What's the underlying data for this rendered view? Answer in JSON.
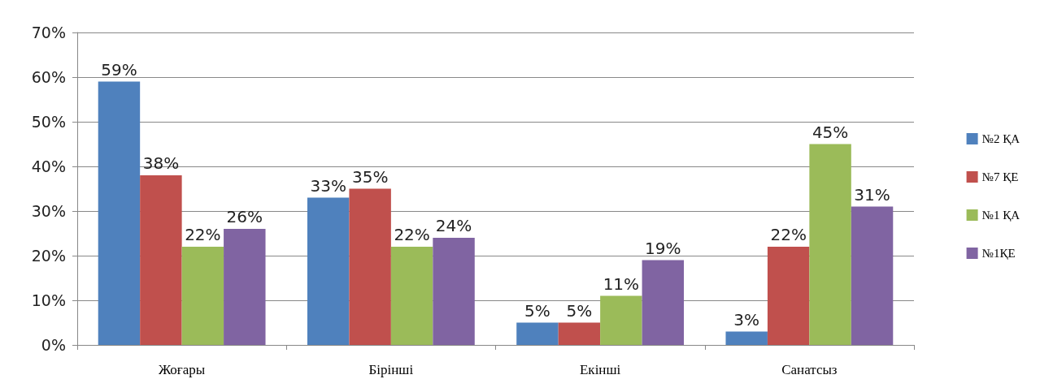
{
  "chart_data": {
    "type": "bar",
    "categories": [
      "Жоғары",
      "Бірінші",
      "Екінші",
      "Санатсыз"
    ],
    "series": [
      {
        "name": "№2 ҚА",
        "color": "#4f81bd",
        "values": [
          59,
          33,
          5,
          3
        ],
        "value_labels": [
          "59%",
          "33%",
          "5%",
          "3%"
        ]
      },
      {
        "name": "№7 ҚЕ",
        "color": "#c0504d",
        "values": [
          38,
          35,
          5,
          22
        ],
        "value_labels": [
          "38%",
          "35%",
          "5%",
          "22%"
        ]
      },
      {
        "name": "№1 ҚА",
        "color": "#9bbb59",
        "values": [
          22,
          22,
          11,
          45
        ],
        "value_labels": [
          "22%",
          "22%",
          "11%",
          "45%"
        ]
      },
      {
        "name": "№1ҚЕ",
        "color": "#8064a2",
        "values": [
          26,
          24,
          19,
          31
        ],
        "value_labels": [
          "26%",
          "24%",
          "19%",
          "31%"
        ]
      }
    ],
    "ylim": [
      0,
      70
    ],
    "yticks": [
      {
        "value": 0,
        "label": "0%"
      },
      {
        "value": 10,
        "label": "10%"
      },
      {
        "value": 20,
        "label": "20%"
      },
      {
        "value": 30,
        "label": "30%"
      },
      {
        "value": 40,
        "label": "40%"
      },
      {
        "value": 50,
        "label": "50%"
      },
      {
        "value": 60,
        "label": "60%"
      },
      {
        "value": 70,
        "label": "70%"
      }
    ],
    "grid": "y",
    "legend": "right"
  }
}
